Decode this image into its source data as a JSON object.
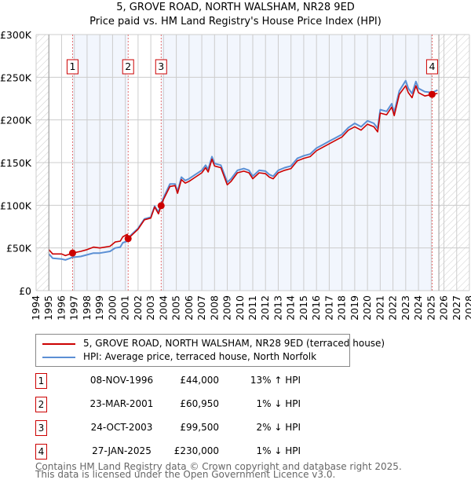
{
  "chart_data": {
    "type": "line",
    "title": "5, GROVE ROAD, NORTH WALSHAM, NR28 9ED",
    "subtitle": "Price paid vs. HM Land Registry's House Price Index (HPI)",
    "xlim": [
      1994,
      2028
    ],
    "ylim": [
      0,
      300000
    ],
    "x_ticks": [
      "1994",
      "1995",
      "1996",
      "1997",
      "1998",
      "1999",
      "2000",
      "2001",
      "2002",
      "2003",
      "2004",
      "2005",
      "2006",
      "2007",
      "2008",
      "2009",
      "2010",
      "2011",
      "2012",
      "2013",
      "2014",
      "2015",
      "2016",
      "2017",
      "2018",
      "2019",
      "2020",
      "2021",
      "2022",
      "2023",
      "2024",
      "2025",
      "2026",
      "2027",
      "2028"
    ],
    "y_ticks": [
      {
        "v": 0,
        "label": "£0"
      },
      {
        "v": 50000,
        "label": "£50K"
      },
      {
        "v": 100000,
        "label": "£100K"
      },
      {
        "v": 150000,
        "label": "£150K"
      },
      {
        "v": 200000,
        "label": "£200K"
      },
      {
        "v": 250000,
        "label": "£250K"
      },
      {
        "v": 300000,
        "label": "£300K"
      }
    ],
    "grid": true,
    "data_range": [
      1995,
      2025.6
    ],
    "series": [
      {
        "name": "5, GROVE ROAD, NORTH WALSHAM, NR28 9ED (terraced house)",
        "color": "#cc0000",
        "x": [
          1995.0,
          1995.3,
          1996.0,
          1996.3,
          1996.86,
          1997.5,
          1998.0,
          1998.5,
          1999.0,
          1999.8,
          2000.2,
          2000.6,
          2000.8,
          2001.15,
          2001.22,
          2001.5,
          2002.0,
          2002.5,
          2003.0,
          2003.3,
          2003.6,
          2003.81,
          2004.0,
          2004.5,
          2004.9,
          2005.1,
          2005.4,
          2005.7,
          2006.0,
          2006.5,
          2007.0,
          2007.3,
          2007.5,
          2007.8,
          2008.0,
          2008.5,
          2009.0,
          2009.3,
          2009.8,
          2010.3,
          2010.7,
          2011.0,
          2011.5,
          2012.0,
          2012.3,
          2012.6,
          2013.0,
          2013.5,
          2014.0,
          2014.5,
          2015.0,
          2015.5,
          2016.0,
          2016.5,
          2017.0,
          2017.5,
          2018.0,
          2018.5,
          2019.0,
          2019.5,
          2020.0,
          2020.5,
          2020.8,
          2021.0,
          2021.5,
          2021.9,
          2022.1,
          2022.5,
          2023.0,
          2023.2,
          2023.5,
          2023.8,
          2024.0,
          2024.5,
          2025.07,
          2025.5
        ],
        "y": [
          48000,
          43000,
          43000,
          41000,
          44000,
          46000,
          48000,
          51000,
          50000,
          52000,
          57000,
          58000,
          63000,
          66000,
          60950,
          65000,
          72000,
          83000,
          85000,
          98000,
          90000,
          99500,
          107000,
          122000,
          123000,
          114000,
          130000,
          126000,
          128000,
          133000,
          138000,
          144000,
          139000,
          154000,
          146000,
          144000,
          124000,
          128000,
          138000,
          140000,
          138000,
          131000,
          138000,
          137000,
          133000,
          131000,
          138000,
          141000,
          143000,
          152000,
          155000,
          157000,
          164000,
          168000,
          172000,
          176000,
          180000,
          188000,
          192000,
          188000,
          195000,
          192000,
          186000,
          208000,
          206000,
          215000,
          205000,
          230000,
          240000,
          232000,
          226000,
          240000,
          232000,
          228000,
          230000,
          231000
        ]
      },
      {
        "name": "HPI: Average price, terraced house, North Norfolk",
        "color": "#5b8fd4",
        "x": [
          1995.0,
          1995.3,
          1996.0,
          1996.3,
          1996.86,
          1997.5,
          1998.0,
          1998.5,
          1999.0,
          1999.8,
          2000.2,
          2000.6,
          2000.8,
          2001.15,
          2001.22,
          2001.5,
          2002.0,
          2002.5,
          2003.0,
          2003.3,
          2003.6,
          2003.81,
          2004.0,
          2004.5,
          2004.9,
          2005.1,
          2005.4,
          2005.7,
          2006.0,
          2006.5,
          2007.0,
          2007.3,
          2007.5,
          2007.8,
          2008.0,
          2008.5,
          2009.0,
          2009.3,
          2009.8,
          2010.3,
          2010.7,
          2011.0,
          2011.5,
          2012.0,
          2012.3,
          2012.6,
          2013.0,
          2013.5,
          2014.0,
          2014.5,
          2015.0,
          2015.5,
          2016.0,
          2016.5,
          2017.0,
          2017.5,
          2018.0,
          2018.5,
          2019.0,
          2019.5,
          2020.0,
          2020.5,
          2020.8,
          2021.0,
          2021.5,
          2021.9,
          2022.1,
          2022.5,
          2023.0,
          2023.2,
          2023.5,
          2023.8,
          2024.0,
          2024.5,
          2025.07,
          2025.5
        ],
        "y": [
          43000,
          38000,
          37000,
          36000,
          39000,
          40000,
          42000,
          44000,
          44000,
          46000,
          50000,
          51000,
          56000,
          58000,
          61500,
          66000,
          73000,
          84000,
          86000,
          99000,
          92000,
          101500,
          109000,
          125000,
          125000,
          116000,
          133000,
          129000,
          131000,
          136000,
          141000,
          147000,
          142000,
          157000,
          149000,
          147000,
          127000,
          131000,
          141000,
          143000,
          141000,
          134000,
          141000,
          140000,
          136000,
          134000,
          141000,
          144000,
          146000,
          155000,
          158000,
          160000,
          167000,
          171000,
          175000,
          179000,
          183000,
          191000,
          196000,
          192000,
          199000,
          196000,
          190000,
          212000,
          210000,
          219000,
          209000,
          234000,
          246000,
          237000,
          231000,
          245000,
          237000,
          233000,
          232000,
          235000
        ]
      }
    ],
    "sales": [
      {
        "n": "1",
        "x": 1996.86,
        "y": 44000
      },
      {
        "n": "2",
        "x": 2001.22,
        "y": 60950
      },
      {
        "n": "3",
        "x": 2003.81,
        "y": 99500
      },
      {
        "n": "4",
        "x": 2025.07,
        "y": 230000
      }
    ]
  },
  "title": "5, GROVE ROAD, NORTH WALSHAM, NR28 9ED",
  "subtitle": "Price paid vs. HM Land Registry's House Price Index (HPI)",
  "legend": [
    {
      "label": "5, GROVE ROAD, NORTH WALSHAM, NR28 9ED (terraced house)",
      "color": "#cc0000"
    },
    {
      "label": "HPI: Average price, terraced house, North Norfolk",
      "color": "#5b8fd4"
    }
  ],
  "transactions": [
    {
      "num": "1",
      "date": "08-NOV-1996",
      "price": "£44,000",
      "hpi": "13% ↑ HPI"
    },
    {
      "num": "2",
      "date": "23-MAR-2001",
      "price": "£60,950",
      "hpi": "1% ↓ HPI"
    },
    {
      "num": "3",
      "date": "24-OCT-2003",
      "price": "£99,500",
      "hpi": "2% ↓ HPI"
    },
    {
      "num": "4",
      "date": "27-JAN-2025",
      "price": "£230,000",
      "hpi": "1% ↓ HPI"
    }
  ],
  "footer": {
    "line1": "Contains HM Land Registry data © Crown copyright and database right 2025.",
    "line2": "This data is licensed under the Open Government Licence v3.0."
  }
}
